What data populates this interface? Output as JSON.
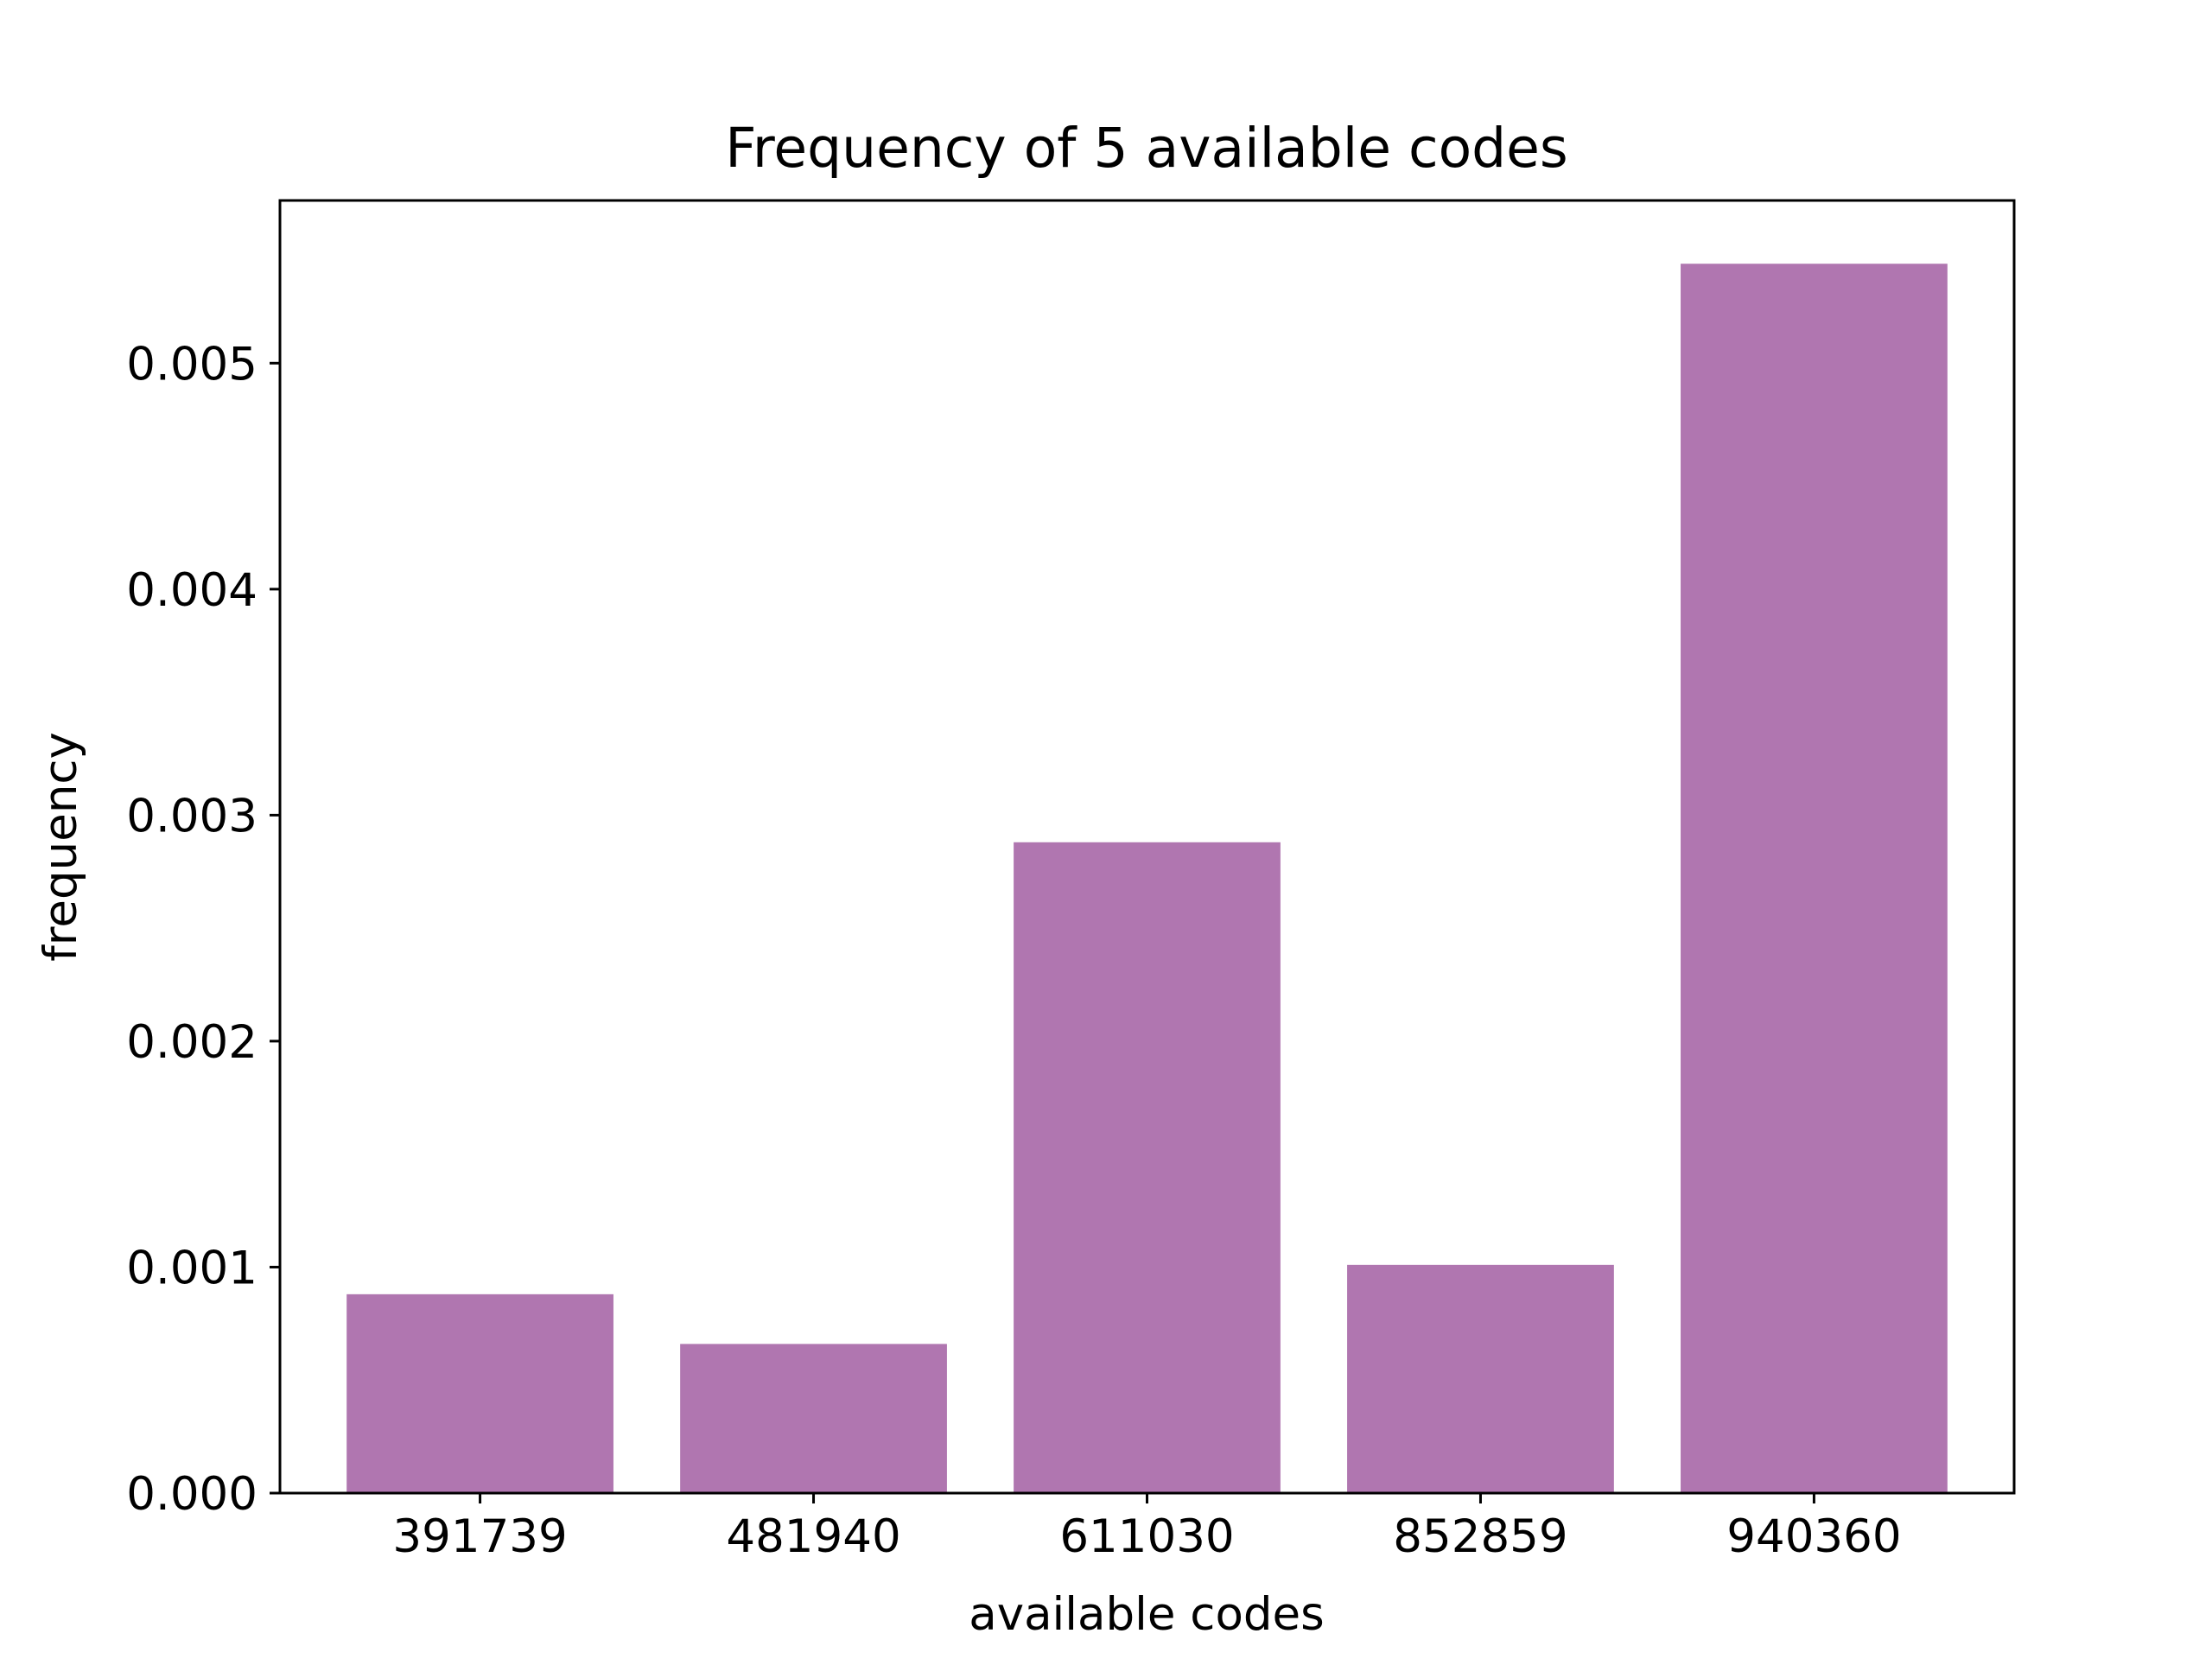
{
  "chart_data": {
    "type": "bar",
    "title": "Frequency of 5 available codes",
    "xlabel": "available codes",
    "ylabel": "frequency",
    "categories": [
      "391739",
      "481940",
      "611030",
      "852859",
      "940360"
    ],
    "values": [
      0.00088,
      0.00066,
      0.00288,
      0.00101,
      0.00544
    ],
    "ylim": [
      0,
      0.00572
    ],
    "yticks": [
      0.0,
      0.001,
      0.002,
      0.003,
      0.004,
      0.005
    ],
    "ytick_labels": [
      "0.000",
      "0.001",
      "0.002",
      "0.003",
      "0.004",
      "0.005"
    ],
    "bar_color": "#b076b0",
    "grid": false,
    "legend": "none"
  }
}
